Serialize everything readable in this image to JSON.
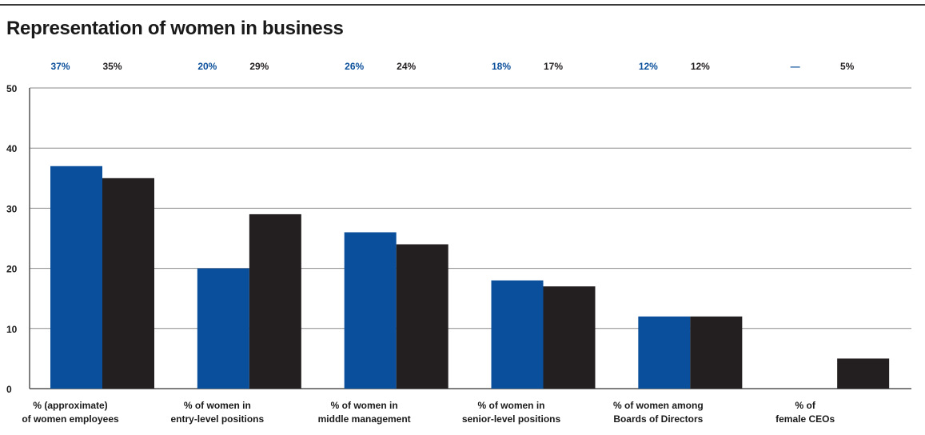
{
  "title": "Representation of women in business",
  "colors": {
    "series_a": "#0a4f9b",
    "series_b": "#231f20",
    "grid": "#8a8a8a",
    "axis": "#555555",
    "text": "#1a1a1a"
  },
  "chart_data": {
    "type": "bar",
    "title": "Representation of women in business",
    "xlabel": "",
    "ylabel": "",
    "ylim": [
      0,
      50
    ],
    "yticks": [
      0,
      10,
      20,
      30,
      40,
      50
    ],
    "grid": true,
    "categories": [
      [
        "% (approximate)",
        "of women employees"
      ],
      [
        "% of women in",
        "entry-level positions"
      ],
      [
        "% of women in",
        "middle management"
      ],
      [
        "% of women in",
        "senior-level positions"
      ],
      [
        "% of women among",
        "Boards of Directors"
      ],
      [
        "% of",
        "female CEOs"
      ]
    ],
    "series": [
      {
        "color": "#0a4f9b",
        "values": [
          37,
          20,
          26,
          18,
          12,
          null
        ],
        "labels": [
          "37%",
          "20%",
          "26%",
          "18%",
          "12%",
          "—"
        ]
      },
      {
        "color": "#231f20",
        "values": [
          35,
          29,
          24,
          17,
          12,
          5
        ],
        "labels": [
          "35%",
          "29%",
          "24%",
          "17%",
          "12%",
          "5%"
        ]
      }
    ]
  }
}
